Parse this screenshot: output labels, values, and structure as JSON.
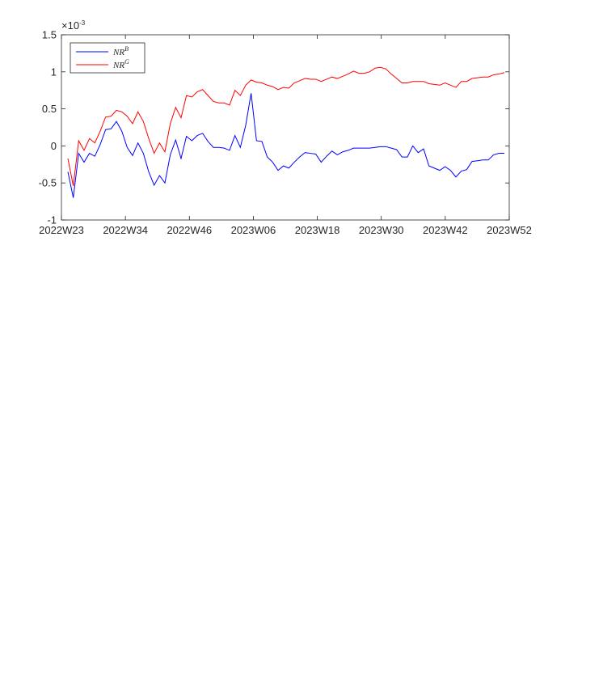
{
  "chart_data": {
    "type": "line",
    "exponent_label": {
      "prefix": "×10",
      "power": "-3"
    },
    "x_ticks": [
      "2022W23",
      "2022W34",
      "2022W46",
      "2023W06",
      "2023W18",
      "2023W30",
      "2023W42",
      "2023W52"
    ],
    "y_ticks": [
      "-1",
      "-0.5",
      "0",
      "0.5",
      "1",
      "1.5"
    ],
    "ylim": [
      -1,
      1.5
    ],
    "grid": false,
    "legend_placement": "top-left",
    "series": [
      {
        "name": "NR",
        "superscript": "B",
        "color": "#0000ff",
        "values": [
          -0.35,
          -0.7,
          -0.1,
          -0.22,
          -0.1,
          -0.14,
          0.02,
          0.22,
          0.23,
          0.33,
          0.2,
          -0.02,
          -0.13,
          0.04,
          -0.1,
          -0.35,
          -0.53,
          -0.4,
          -0.5,
          -0.12,
          0.08,
          -0.17,
          0.13,
          0.07,
          0.14,
          0.17,
          0.06,
          -0.02,
          -0.02,
          -0.03,
          -0.06,
          0.14,
          -0.02,
          0.28,
          0.71,
          0.07,
          0.06,
          -0.15,
          -0.22,
          -0.33,
          -0.27,
          -0.3,
          -0.22,
          -0.15,
          -0.09,
          -0.1,
          -0.11,
          -0.22,
          -0.14,
          -0.07,
          -0.12,
          -0.08,
          -0.06,
          -0.03,
          -0.03,
          -0.03,
          -0.03,
          -0.02,
          -0.01,
          -0.01,
          -0.03,
          -0.05,
          -0.15,
          -0.15,
          0.0,
          -0.09,
          -0.04,
          -0.27,
          -0.3,
          -0.33,
          -0.28,
          -0.33,
          -0.42,
          -0.34,
          -0.32,
          -0.21,
          -0.2,
          -0.19,
          -0.19,
          -0.12,
          -0.1,
          -0.1
        ]
      },
      {
        "name": "NR",
        "superscript": "G",
        "color": "#ff0000",
        "values": [
          -0.17,
          -0.54,
          0.07,
          -0.06,
          0.1,
          0.04,
          0.2,
          0.39,
          0.4,
          0.48,
          0.46,
          0.4,
          0.3,
          0.46,
          0.33,
          0.1,
          -0.1,
          0.04,
          -0.08,
          0.3,
          0.52,
          0.38,
          0.68,
          0.66,
          0.73,
          0.76,
          0.68,
          0.6,
          0.58,
          0.58,
          0.55,
          0.75,
          0.68,
          0.82,
          0.89,
          0.86,
          0.85,
          0.82,
          0.8,
          0.76,
          0.79,
          0.78,
          0.85,
          0.88,
          0.91,
          0.9,
          0.9,
          0.87,
          0.9,
          0.93,
          0.91,
          0.94,
          0.97,
          1.01,
          0.98,
          0.98,
          1.0,
          1.05,
          1.06,
          1.04,
          0.97,
          0.91,
          0.85,
          0.85,
          0.87,
          0.87,
          0.87,
          0.84,
          0.83,
          0.82,
          0.85,
          0.82,
          0.79,
          0.87,
          0.87,
          0.91,
          0.92,
          0.93,
          0.93,
          0.96,
          0.97,
          0.99
        ]
      }
    ]
  }
}
